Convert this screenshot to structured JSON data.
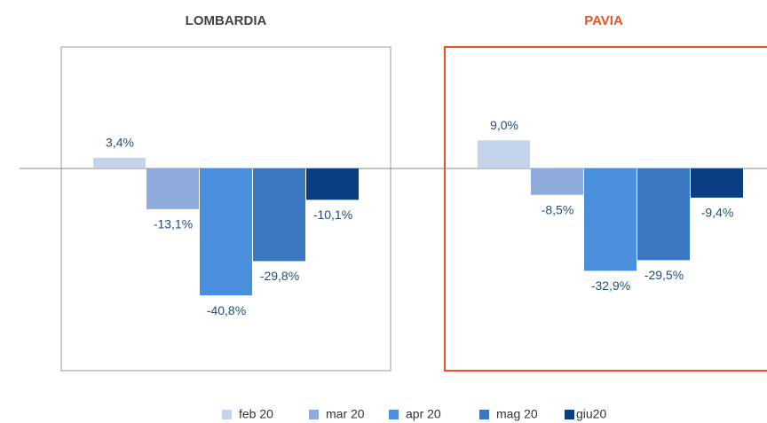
{
  "legend": {
    "items": [
      {
        "name": "feb 20",
        "color": "#c5d3ea"
      },
      {
        "name": "mar 20",
        "color": "#8faadc"
      },
      {
        "name": "apr 20",
        "color": "#4a8fdc"
      },
      {
        "name": "mag 20",
        "color": "#3b78c2"
      },
      {
        "name": "giu20",
        "color": "#0a3e80"
      }
    ]
  },
  "chart_data": [
    {
      "type": "bar",
      "title": "LOMBARDIA",
      "title_color": "#444444",
      "frame_color": "#999999",
      "values": [
        3.4,
        -13.1,
        -40.8,
        -29.8,
        -10.1
      ],
      "value_labels": [
        "3,4%",
        "-13,1%",
        "-40,8%",
        "-29,8%",
        "-10,1%"
      ],
      "ylim": [
        -65,
        39
      ]
    },
    {
      "type": "bar",
      "title": "PAVIA",
      "title_color": "#e8542a",
      "frame_color": "#e8542a",
      "values": [
        9.0,
        -8.5,
        -32.9,
        -29.5,
        -9.4
      ],
      "value_labels": [
        "9,0%",
        "-8,5%",
        "-32,9%",
        "-29,5%",
        "-9,4%"
      ],
      "ylim": [
        -65,
        39
      ]
    }
  ]
}
